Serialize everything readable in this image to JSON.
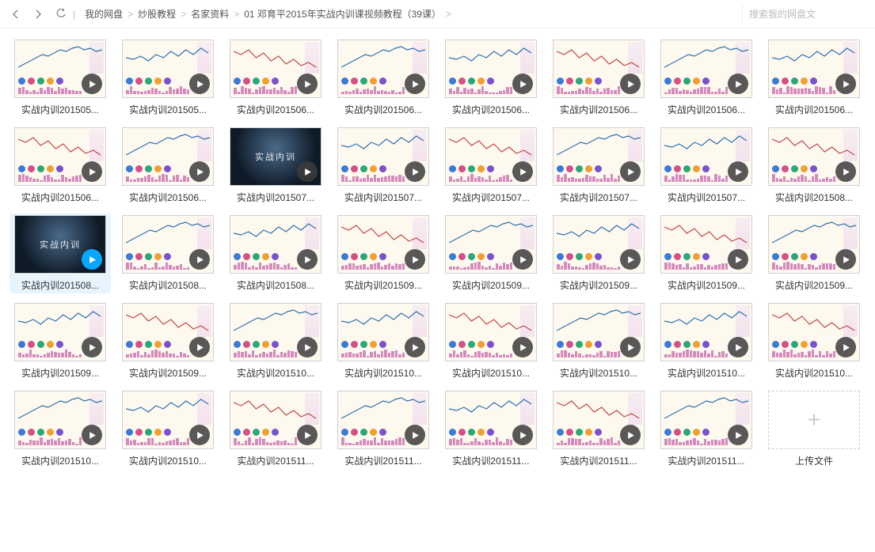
{
  "nav": {
    "back_icon": "chevron-left",
    "fwd_icon": "chevron-right",
    "refresh_icon": "refresh"
  },
  "breadcrumb": [
    "我的网盘",
    "炒股教程",
    "名家资料",
    "01 邓育平2015年实战内训课视频教程（39课）"
  ],
  "breadcrumb_sep": ">",
  "search_placeholder": "搜索我的网盘文",
  "upload_label": "上传文件",
  "thumb_style": {
    "bg": "#fdf9ef",
    "dark_bg": "#1a2a3a",
    "chart_line_color": "#2a6db0",
    "chart_line_color_alt": "#c04040",
    "dot_colors": [
      "#3a7bd5",
      "#d45087",
      "#2aa876",
      "#f0a030",
      "#7a52cc"
    ],
    "bar_color": "#d48bbd",
    "side_panel_gradient": [
      "#f5e8f3",
      "#f0d8ec"
    ]
  },
  "files": [
    {
      "name": "实战内训201505...",
      "variant": 0
    },
    {
      "name": "实战内训201505...",
      "variant": 1
    },
    {
      "name": "实战内训201506...",
      "variant": 2
    },
    {
      "name": "实战内训201506...",
      "variant": 0
    },
    {
      "name": "实战内训201506...",
      "variant": 1
    },
    {
      "name": "实战内训201506...",
      "variant": 2
    },
    {
      "name": "实战内训201506...",
      "variant": 0
    },
    {
      "name": "实战内训201506...",
      "variant": 1
    },
    {
      "name": "实战内训201506...",
      "variant": 2
    },
    {
      "name": "实战内训201506...",
      "variant": 0
    },
    {
      "name": "实战内训201507...",
      "dark": true,
      "dark_text": "实战内训"
    },
    {
      "name": "实战内训201507...",
      "variant": 1
    },
    {
      "name": "实战内训201507...",
      "variant": 2
    },
    {
      "name": "实战内训201507...",
      "variant": 0
    },
    {
      "name": "实战内训201507...",
      "variant": 1
    },
    {
      "name": "实战内训201508...",
      "variant": 2
    },
    {
      "name": "实战内训201508...",
      "dark": true,
      "dark_text": "实战内训",
      "selected": true
    },
    {
      "name": "实战内训201508...",
      "variant": 0
    },
    {
      "name": "实战内训201508...",
      "variant": 1
    },
    {
      "name": "实战内训201509...",
      "variant": 2
    },
    {
      "name": "实战内训201509...",
      "variant": 0
    },
    {
      "name": "实战内训201509...",
      "variant": 1
    },
    {
      "name": "实战内训201509...",
      "variant": 2
    },
    {
      "name": "实战内训201509...",
      "variant": 0
    },
    {
      "name": "实战内训201509...",
      "variant": 1
    },
    {
      "name": "实战内训201509...",
      "variant": 2
    },
    {
      "name": "实战内训201510...",
      "variant": 0
    },
    {
      "name": "实战内训201510...",
      "variant": 1
    },
    {
      "name": "实战内训201510...",
      "variant": 2
    },
    {
      "name": "实战内训201510...",
      "variant": 0
    },
    {
      "name": "实战内训201510...",
      "variant": 1
    },
    {
      "name": "实战内训201510...",
      "variant": 2
    },
    {
      "name": "实战内训201510...",
      "variant": 0
    },
    {
      "name": "实战内训201510...",
      "variant": 1
    },
    {
      "name": "实战内训201511...",
      "variant": 2
    },
    {
      "name": "实战内训201511...",
      "variant": 0
    },
    {
      "name": "实战内训201511...",
      "variant": 1
    },
    {
      "name": "实战内训201511...",
      "variant": 2
    },
    {
      "name": "实战内训201511...",
      "variant": 0
    }
  ],
  "chart_paths": [
    "M0,30 L8,26 L16,22 L24,18 L32,14 L40,16 L48,12 L56,8 L64,10 L72,6 L80,4 L88,8 L96,6 L104,10 L112,8",
    "M0,18 L10,20 L20,16 L30,22 L40,14 L50,18 L60,10 L70,16 L80,8 L90,14 L100,6 L110,12",
    "M0,10 L10,14 L20,8 L30,18 L40,12 L50,22 L60,16 L70,26 L80,20 L90,28 L100,24 L110,30"
  ]
}
